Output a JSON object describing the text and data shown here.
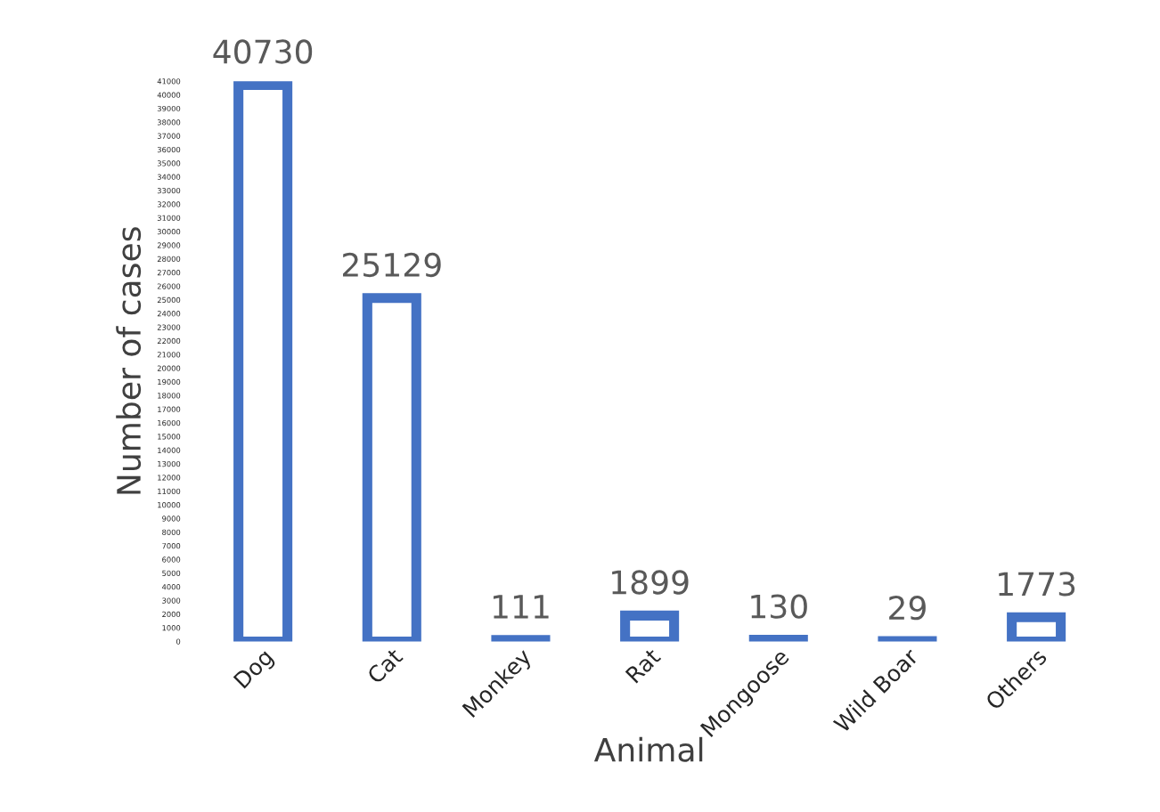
{
  "chart_data": {
    "type": "bar",
    "xlabel": "Animal",
    "ylabel": "Number of cases",
    "categories": [
      "Dog",
      "Cat",
      "Monkey",
      "Rat",
      "Mongoose",
      "Wild Boar",
      "Others"
    ],
    "values": [
      40730,
      25129,
      111,
      1899,
      130,
      29,
      1773
    ],
    "color": "#4472c4",
    "data_labels": true,
    "grid": false,
    "legend": false,
    "ylim": [
      0,
      41000
    ],
    "yticks": [
      0,
      1000,
      2000,
      3000,
      4000,
      5000,
      6000,
      7000,
      8000,
      9000,
      10000,
      11000,
      12000,
      13000,
      14000,
      15000,
      16000,
      17000,
      18000,
      19000,
      20000,
      21000,
      22000,
      23000,
      24000,
      25000,
      26000,
      27000,
      28000,
      29000,
      30000,
      31000,
      32000,
      33000,
      34000,
      35000,
      36000,
      37000,
      38000,
      39000,
      40000,
      41000
    ]
  }
}
